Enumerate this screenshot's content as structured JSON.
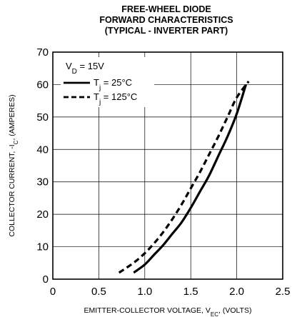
{
  "chart_data": {
    "type": "line",
    "title": [
      "FREE-WHEEL DIODE",
      "FORWARD CHARACTERISTICS",
      "(TYPICAL - INVERTER PART)"
    ],
    "xlabel": {
      "main": "EMITTER-COLLECTOR VOLTAGE, V",
      "sub": "EC",
      "tail": ", (VOLTS)"
    },
    "ylabel": {
      "main": "COLLECTOR CURRENT, -I",
      "sub": "C",
      "tail": ", (AMPERES)"
    },
    "xlim": [
      0,
      2.5
    ],
    "ylim": [
      0,
      70
    ],
    "xticks": [
      0,
      0.5,
      1.0,
      1.5,
      2.0,
      2.5
    ],
    "xtick_labels": [
      "0",
      "0.5",
      "1.0",
      "1.5",
      "2.0",
      "2.5"
    ],
    "yticks": [
      0,
      10,
      20,
      30,
      40,
      50,
      60,
      70
    ],
    "ytick_labels": [
      "0",
      "10",
      "20",
      "30",
      "40",
      "50",
      "60",
      "70"
    ],
    "grid": true,
    "legend_placement": "top-left",
    "condition": {
      "main": "V",
      "sub": "D",
      "tail": " = 15V"
    },
    "series": [
      {
        "name": {
          "main": "T",
          "sub": "j",
          "tail": " = 25°C"
        },
        "style": "solid",
        "color": "#000000",
        "x": [
          0.88,
          1.0,
          1.1,
          1.2,
          1.3,
          1.4,
          1.5,
          1.6,
          1.7,
          1.8,
          1.9,
          2.0,
          2.1
        ],
        "y": [
          2,
          4.5,
          7.5,
          10.5,
          14,
          17.5,
          22,
          27,
          32,
          38,
          44,
          51,
          60
        ]
      },
      {
        "name": {
          "main": "T",
          "sub": "j",
          "tail": " = 125°C"
        },
        "style": "dashed",
        "color": "#000000",
        "x": [
          0.72,
          0.8,
          0.9,
          1.0,
          1.1,
          1.2,
          1.3,
          1.4,
          1.5,
          1.6,
          1.7,
          1.8,
          1.9,
          2.0,
          2.13
        ],
        "y": [
          2,
          3.5,
          5.5,
          8,
          11,
          14.5,
          18.5,
          23,
          28,
          33,
          38.5,
          44,
          50,
          56,
          61
        ]
      }
    ]
  }
}
